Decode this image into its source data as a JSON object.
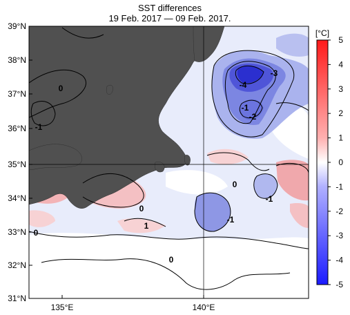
{
  "title": "SST differences",
  "subtitle": "19 Feb. 2017 — 09 Feb. 2017.",
  "lat_labels": [
    "39°N",
    "38°N",
    "37°N",
    "36°N",
    "35°N",
    "34°N",
    "33°N",
    "32°N",
    "31°N"
  ],
  "lon_labels": [
    "135°E",
    "140°E"
  ],
  "contour_labels": [
    "-3",
    "-4",
    "-1",
    "-2",
    "-1",
    "0",
    "0",
    "-1",
    "0",
    "-1",
    "1",
    "0",
    "0"
  ],
  "colorbar": {
    "unit": "[°C]",
    "ticks": [
      "5",
      "4",
      "3",
      "2",
      "1",
      "0",
      "-1",
      "-2",
      "-3",
      "-4",
      "-5"
    ],
    "range": [
      -5,
      5
    ],
    "colors": {
      "max": "#ff1a1a",
      "zero": "#ffffff",
      "min": "#1a1aff"
    }
  },
  "map": {
    "extent": {
      "lat": [
        31,
        39
      ],
      "lon": [
        134,
        144
      ]
    },
    "land_color": "#505050",
    "ocean_base_color": "#e8ecfb"
  }
}
